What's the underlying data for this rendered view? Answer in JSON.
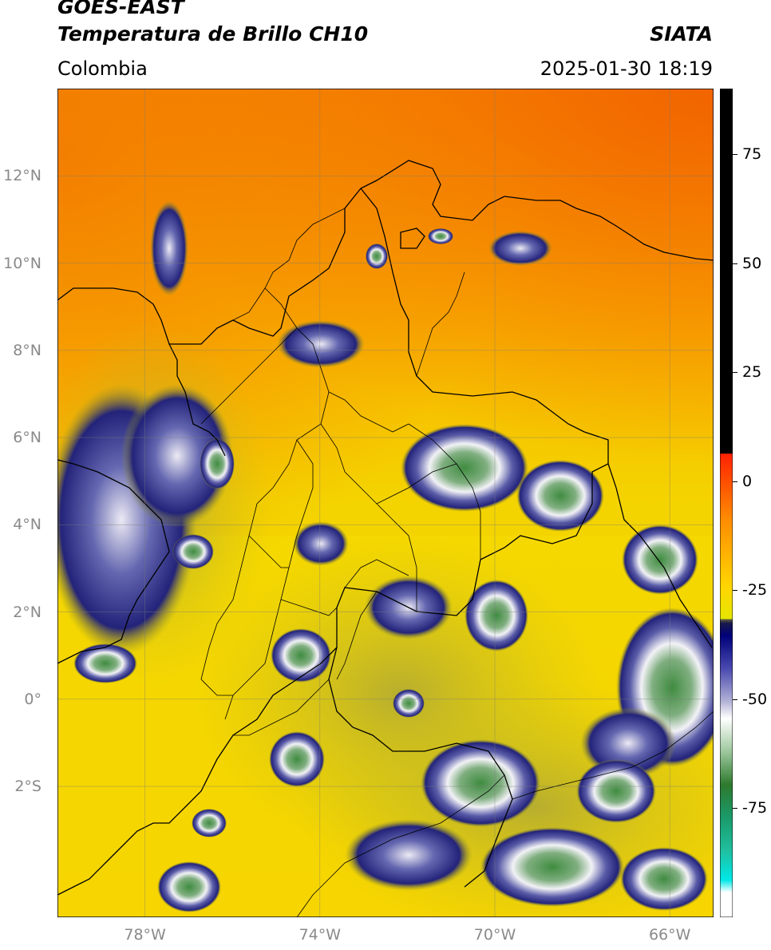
{
  "header": {
    "satellite": "GOES-EAST",
    "product": "Temperatura de Brillo CH10",
    "organization": "SIATA",
    "region": "Colombia",
    "datetime": "2025-01-30 18:19"
  },
  "map": {
    "lon_range": [
      -80,
      -65
    ],
    "lat_range": [
      -5,
      14
    ],
    "lat_ticks": [
      {
        "value": 12,
        "label": "12°N"
      },
      {
        "value": 10,
        "label": "10°N"
      },
      {
        "value": 8,
        "label": "8°N"
      },
      {
        "value": 6,
        "label": "6°N"
      },
      {
        "value": 4,
        "label": "4°N"
      },
      {
        "value": 2,
        "label": "2°N"
      },
      {
        "value": 0,
        "label": "0°"
      },
      {
        "value": -2,
        "label": "2°S"
      }
    ],
    "lon_ticks": [
      {
        "value": -78,
        "label": "78°W"
      },
      {
        "value": -74,
        "label": "74°W"
      },
      {
        "value": -70,
        "label": "70°W"
      },
      {
        "value": -66,
        "label": "66°W"
      }
    ],
    "colors": {
      "background": "#f7c600",
      "warm": "#f26a00",
      "cloud_dark": "#23237a",
      "cloud_core": "#3e8a3e",
      "border": "#000000"
    }
  },
  "colorbar": {
    "range": [
      -100,
      90
    ],
    "ticks": [
      {
        "value": 75,
        "label": "75"
      },
      {
        "value": 50,
        "label": "50"
      },
      {
        "value": 25,
        "label": "25"
      },
      {
        "value": 0,
        "label": "0"
      },
      {
        "value": -25,
        "label": "-25"
      },
      {
        "value": -50,
        "label": "-50"
      },
      {
        "value": -75,
        "label": "-75"
      }
    ]
  }
}
